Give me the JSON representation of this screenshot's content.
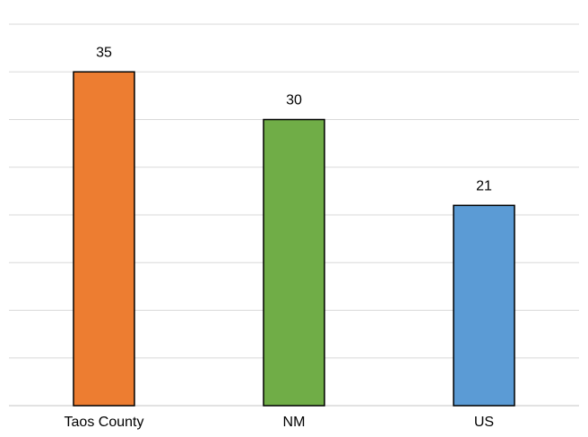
{
  "chart_data": {
    "type": "bar",
    "categories": [
      "Taos County",
      "NM",
      "US"
    ],
    "values": [
      35,
      30,
      21
    ],
    "colors": [
      "#ed7d31",
      "#70ad47",
      "#5b9bd5"
    ],
    "ylim": [
      0,
      40
    ],
    "y_gridline_step": 5,
    "grid": true,
    "legend": "none",
    "show_data_labels": true,
    "title": "",
    "xlabel": "",
    "ylabel": ""
  }
}
